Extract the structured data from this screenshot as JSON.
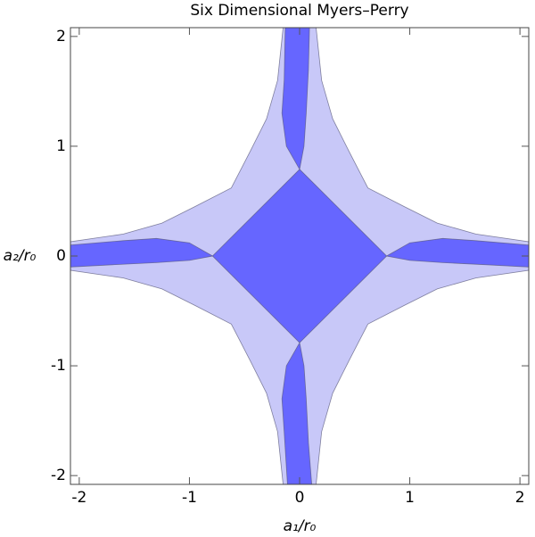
{
  "chart_data": {
    "type": "region",
    "title": "Six Dimensional Myers–Perry",
    "xlabel": "a₁/r₀",
    "ylabel": "a₂/r₀",
    "xlim": [
      -2.08,
      2.08
    ],
    "ylim": [
      -2.08,
      2.08
    ],
    "xticks": [
      -2,
      -1,
      0,
      1,
      2
    ],
    "yticks": [
      -2,
      -1,
      0,
      1,
      2
    ],
    "series": [
      {
        "color": "#c8c8f8",
        "x": [
          0.15,
          0.2,
          0.3,
          0.45,
          0.62,
          0.95,
          1.25,
          1.6,
          2.08,
          2.08,
          1.6,
          1.25,
          0.95,
          0.62,
          0.45,
          0.3,
          0.2,
          0.15,
          -0.15,
          -0.2,
          -0.3,
          -0.45,
          -0.62,
          -0.95,
          -1.25,
          -1.6,
          -2.08,
          -2.08,
          -1.6,
          -1.25,
          -0.95,
          -0.62,
          -0.45,
          -0.3,
          -0.2,
          -0.15
        ],
        "y": [
          2.08,
          1.6,
          1.25,
          0.95,
          0.62,
          0.45,
          0.3,
          0.2,
          0.13,
          -0.13,
          -0.2,
          -0.3,
          -0.45,
          -0.62,
          -0.95,
          -1.25,
          -1.6,
          -2.08,
          -2.08,
          -1.6,
          -1.25,
          -0.95,
          -0.62,
          -0.45,
          -0.3,
          -0.2,
          -0.13,
          0.13,
          0.2,
          0.3,
          0.45,
          0.62,
          0.95,
          1.25,
          1.6,
          2.08
        ]
      },
      {
        "color": "#6666ff",
        "x": [
          0,
          0.79,
          0,
          -0.79
        ],
        "y": [
          0.79,
          0,
          -0.79,
          0
        ]
      },
      {
        "color": "#6666ff",
        "x": [
          0,
          -0.12,
          -0.16,
          -0.14,
          -0.13,
          0.09,
          0.08,
          0.06,
          0.04
        ],
        "y": [
          0.79,
          1.0,
          1.3,
          1.6,
          2.08,
          2.08,
          1.7,
          1.3,
          1.0
        ]
      },
      {
        "color": "#6666ff",
        "x": [
          0,
          -0.12,
          -0.16,
          -0.14,
          -0.11,
          0.11,
          0.08,
          0.06,
          0.04
        ],
        "y": [
          -0.79,
          -1.0,
          -1.3,
          -1.6,
          -2.08,
          -2.08,
          -1.7,
          -1.3,
          -1.0
        ]
      },
      {
        "color": "#6666ff",
        "x": [
          0.79,
          1.0,
          1.3,
          1.6,
          2.08,
          2.08,
          1.7,
          1.3,
          1.0
        ],
        "y": [
          0,
          0.12,
          0.16,
          0.14,
          0.1,
          -0.1,
          -0.08,
          -0.06,
          -0.04
        ]
      },
      {
        "color": "#6666ff",
        "x": [
          -0.79,
          -1.0,
          -1.3,
          -1.6,
          -2.08,
          -2.08,
          -1.7,
          -1.3,
          -1.0
        ],
        "y": [
          0,
          0.12,
          0.16,
          0.14,
          0.1,
          -0.1,
          -0.08,
          -0.06,
          -0.04
        ]
      }
    ]
  }
}
